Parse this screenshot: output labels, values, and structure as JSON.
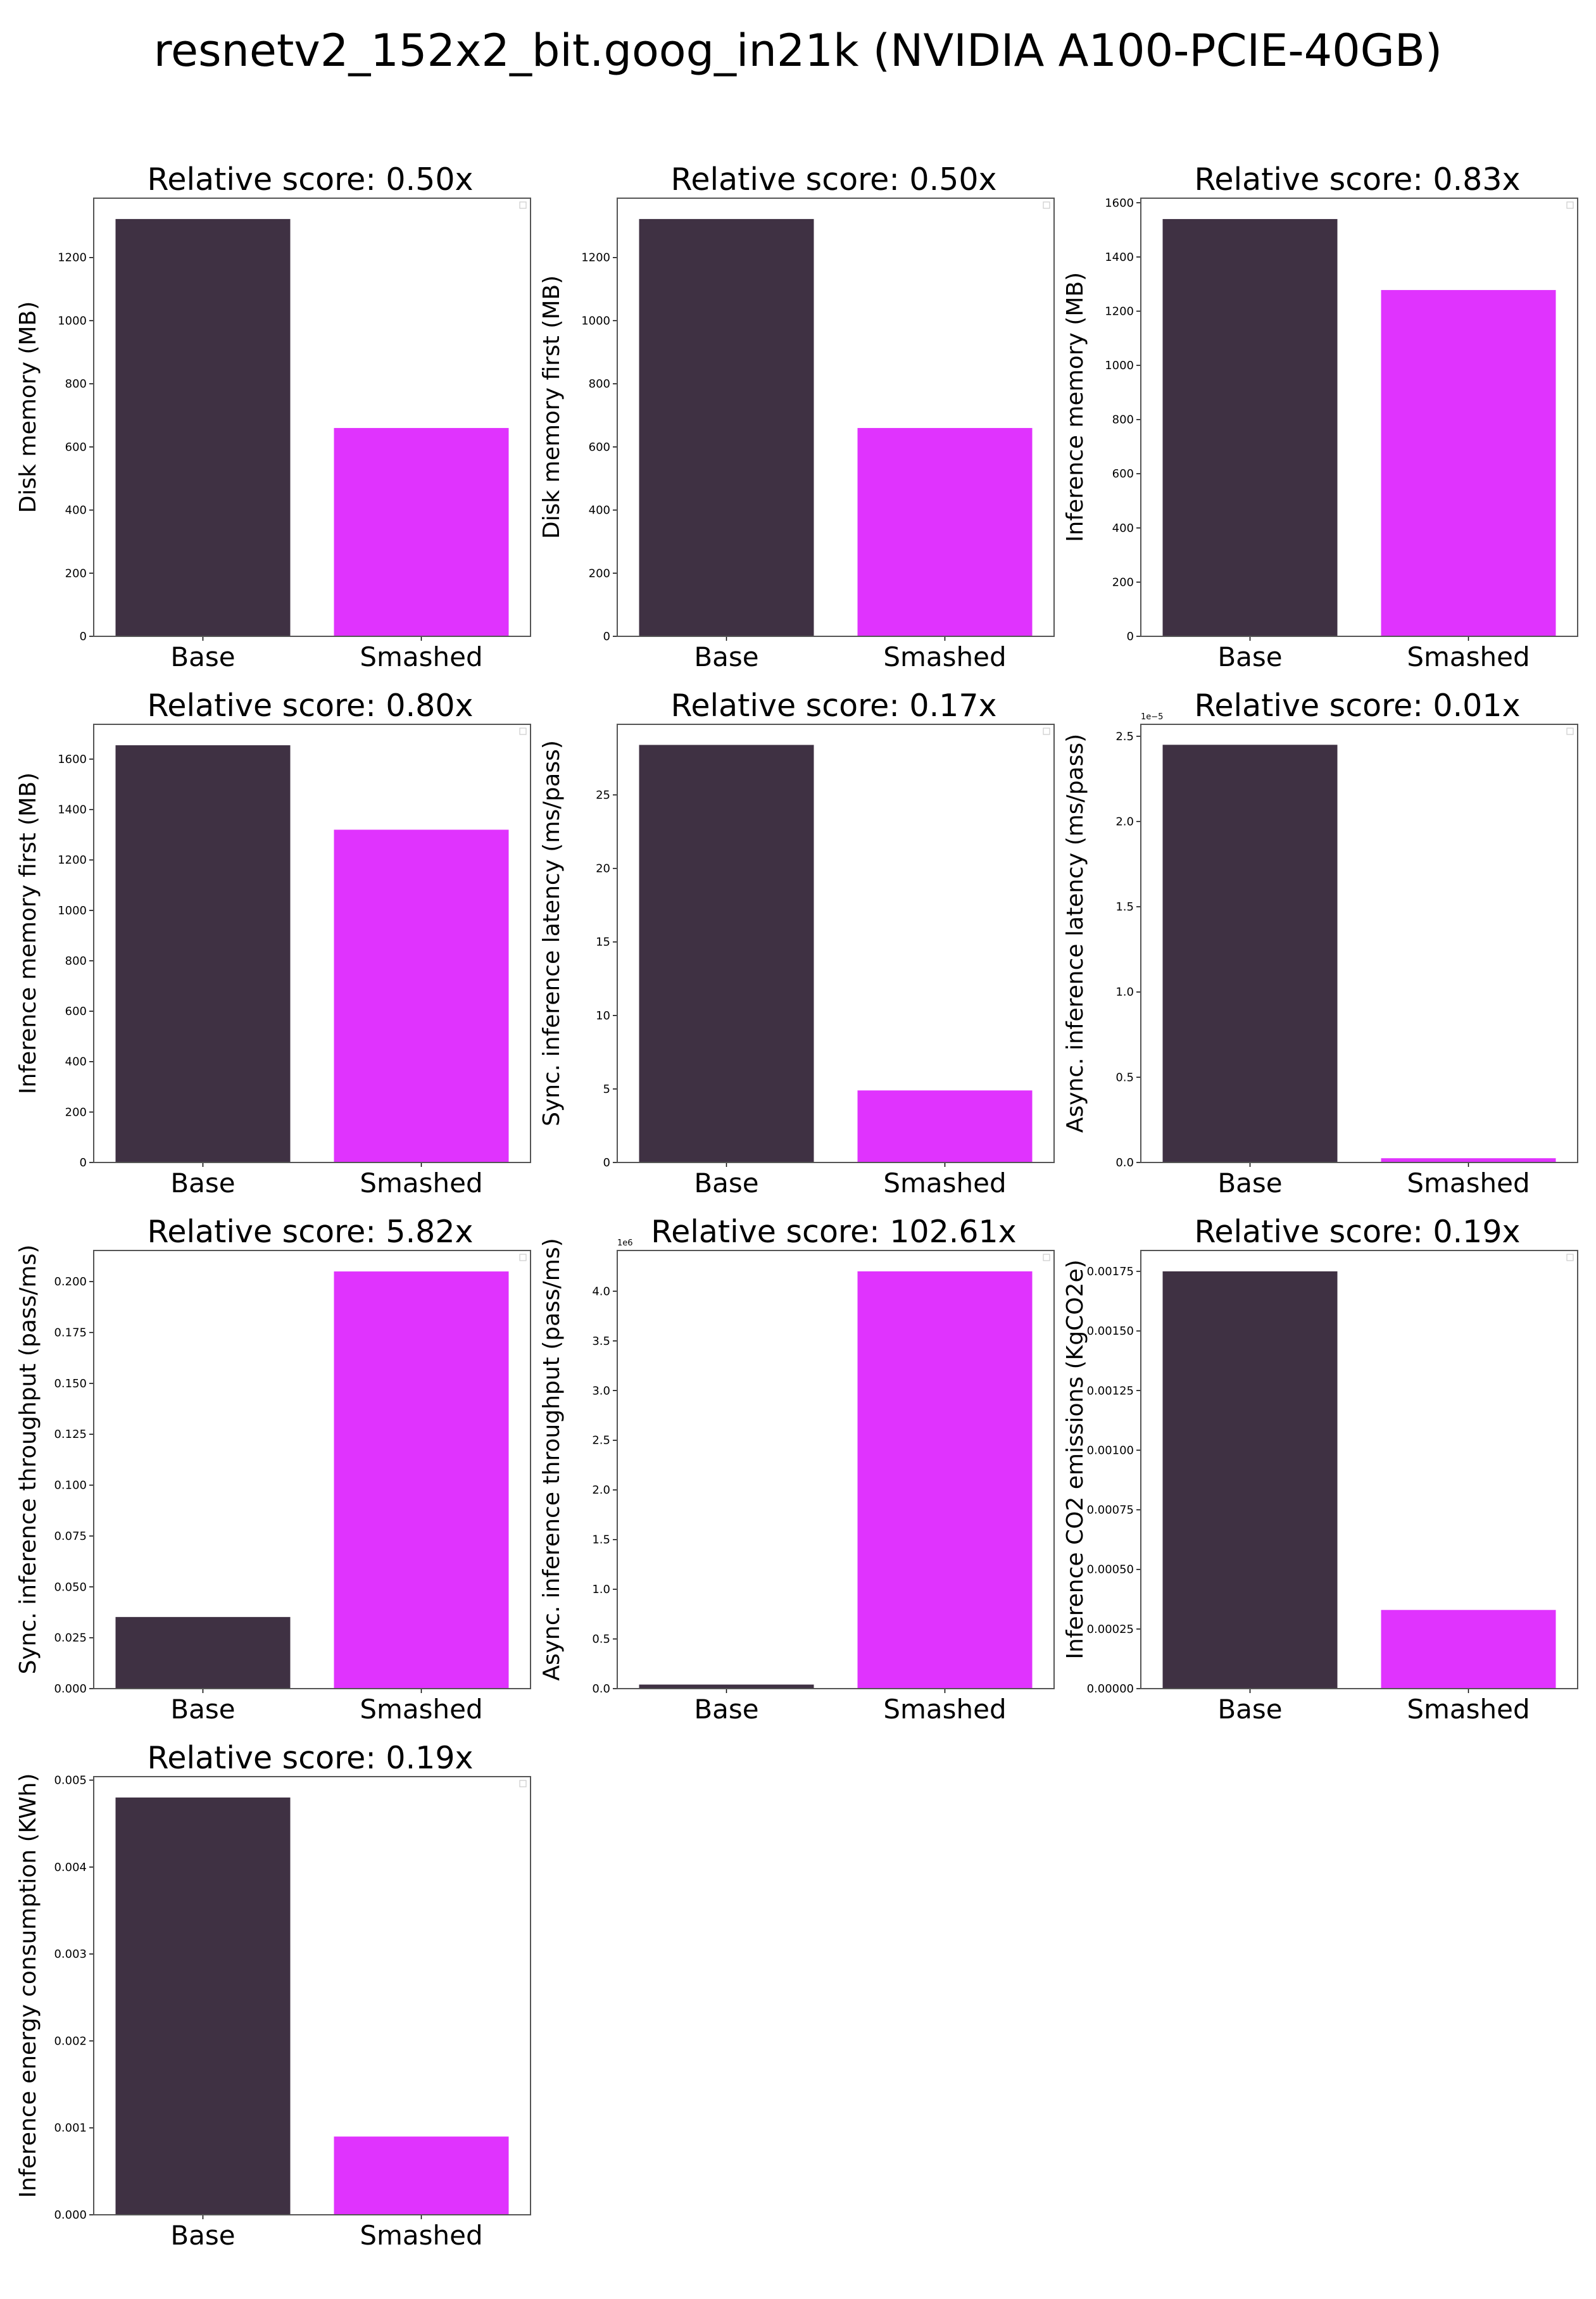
{
  "figure": {
    "title": "resnetv2_152x2_bit.goog_in21k (NVIDIA A100-PCIE-40GB)"
  },
  "colors": {
    "base": "#3f3143",
    "smashed": "#e033fe",
    "axis": "#555555"
  },
  "chart_data": [
    {
      "type": "bar",
      "title": "Relative score: 0.50x",
      "ylabel": "Disk memory (MB)",
      "categories": [
        "Base",
        "Smashed"
      ],
      "values": [
        1322,
        660
      ],
      "ylim": [
        0,
        1388
      ],
      "yticks": [
        0,
        200,
        400,
        600,
        800,
        1000,
        1200
      ],
      "ytick_labels": [
        "0",
        "200",
        "400",
        "600",
        "800",
        "1000",
        "1200"
      ],
      "offset_label": "",
      "legend": "top-right (empty)"
    },
    {
      "type": "bar",
      "title": "Relative score: 0.50x",
      "ylabel": "Disk memory first (MB)",
      "categories": [
        "Base",
        "Smashed"
      ],
      "values": [
        1322,
        660
      ],
      "ylim": [
        0,
        1388
      ],
      "yticks": [
        0,
        200,
        400,
        600,
        800,
        1000,
        1200
      ],
      "ytick_labels": [
        "0",
        "200",
        "400",
        "600",
        "800",
        "1000",
        "1200"
      ],
      "offset_label": "",
      "legend": "top-right (empty)"
    },
    {
      "type": "bar",
      "title": "Relative score: 0.83x",
      "ylabel": "Inference memory (MB)",
      "categories": [
        "Base",
        "Smashed"
      ],
      "values": [
        1540,
        1278
      ],
      "ylim": [
        0,
        1617
      ],
      "yticks": [
        0,
        200,
        400,
        600,
        800,
        1000,
        1200,
        1400,
        1600
      ],
      "ytick_labels": [
        "0",
        "200",
        "400",
        "600",
        "800",
        "1000",
        "1200",
        "1400",
        "1600"
      ],
      "offset_label": "",
      "legend": "top-right (empty)"
    },
    {
      "type": "bar",
      "title": "Relative score: 0.80x",
      "ylabel": "Inference memory first (MB)",
      "categories": [
        "Base",
        "Smashed"
      ],
      "values": [
        1655,
        1320
      ],
      "ylim": [
        0,
        1738
      ],
      "yticks": [
        0,
        200,
        400,
        600,
        800,
        1000,
        1200,
        1400,
        1600
      ],
      "ytick_labels": [
        "0",
        "200",
        "400",
        "600",
        "800",
        "1000",
        "1200",
        "1400",
        "1600"
      ],
      "offset_label": "",
      "legend": "top-right (empty)"
    },
    {
      "type": "bar",
      "title": "Relative score: 0.17x",
      "ylabel": "Sync. inference latency (ms/pass)",
      "categories": [
        "Base",
        "Smashed"
      ],
      "values": [
        28.4,
        4.9
      ],
      "ylim": [
        0,
        29.8
      ],
      "yticks": [
        0,
        5,
        10,
        15,
        20,
        25
      ],
      "ytick_labels": [
        "0",
        "5",
        "10",
        "15",
        "20",
        "25"
      ],
      "offset_label": "",
      "legend": "top-right (empty)"
    },
    {
      "type": "bar",
      "title": "Relative score: 0.01x",
      "ylabel": "Async. inference latency (ms/pass)",
      "categories": [
        "Base",
        "Smashed"
      ],
      "values": [
        2.45,
        0.025
      ],
      "ylim": [
        0,
        2.57
      ],
      "yticks": [
        0,
        0.5,
        1.0,
        1.5,
        2.0,
        2.5
      ],
      "ytick_labels": [
        "0.0",
        "0.5",
        "1.0",
        "1.5",
        "2.0",
        "2.5"
      ],
      "offset_label": "1e−5",
      "legend": "top-right (empty)"
    },
    {
      "type": "bar",
      "title": "Relative score: 5.82x",
      "ylabel": "Sync. inference throughput (pass/ms)",
      "categories": [
        "Base",
        "Smashed"
      ],
      "values": [
        0.0352,
        0.205
      ],
      "ylim": [
        0,
        0.2153
      ],
      "yticks": [
        0,
        0.025,
        0.05,
        0.075,
        0.1,
        0.125,
        0.15,
        0.175,
        0.2
      ],
      "ytick_labels": [
        "0.000",
        "0.025",
        "0.050",
        "0.075",
        "0.100",
        "0.125",
        "0.150",
        "0.175",
        "0.200"
      ],
      "offset_label": "",
      "legend": "top-right (empty)"
    },
    {
      "type": "bar",
      "title": "Relative score: 102.61x",
      "ylabel": "Async. inference throughput (pass/ms)",
      "categories": [
        "Base",
        "Smashed"
      ],
      "values": [
        0.041,
        4.2
      ],
      "ylim": [
        0,
        4.41
      ],
      "yticks": [
        0,
        0.5,
        1.0,
        1.5,
        2.0,
        2.5,
        3.0,
        3.5,
        4.0
      ],
      "ytick_labels": [
        "0.0",
        "0.5",
        "1.0",
        "1.5",
        "2.0",
        "2.5",
        "3.0",
        "3.5",
        "4.0"
      ],
      "offset_label": "1e6",
      "legend": "top-right (empty)"
    },
    {
      "type": "bar",
      "title": "Relative score: 0.19x",
      "ylabel": "Inference CO2 emissions (KgCO2e)",
      "categories": [
        "Base",
        "Smashed"
      ],
      "values": [
        0.00175,
        0.00033
      ],
      "ylim": [
        0,
        0.0018375
      ],
      "yticks": [
        0,
        0.00025,
        0.0005,
        0.00075,
        0.001,
        0.00125,
        0.0015,
        0.00175
      ],
      "ytick_labels": [
        "0.00000",
        "0.00025",
        "0.00050",
        "0.00075",
        "0.00100",
        "0.00125",
        "0.00150",
        "0.00175"
      ],
      "offset_label": "",
      "legend": "top-right (empty)"
    },
    {
      "type": "bar",
      "title": "Relative score: 0.19x",
      "ylabel": "Inference energy consumption (KWh)",
      "categories": [
        "Base",
        "Smashed"
      ],
      "values": [
        0.0048,
        0.0009
      ],
      "ylim": [
        0,
        0.00504
      ],
      "yticks": [
        0,
        0.001,
        0.002,
        0.003,
        0.004,
        0.005
      ],
      "ytick_labels": [
        "0.000",
        "0.001",
        "0.002",
        "0.003",
        "0.004",
        "0.005"
      ],
      "offset_label": "",
      "legend": "top-right (empty)"
    }
  ]
}
